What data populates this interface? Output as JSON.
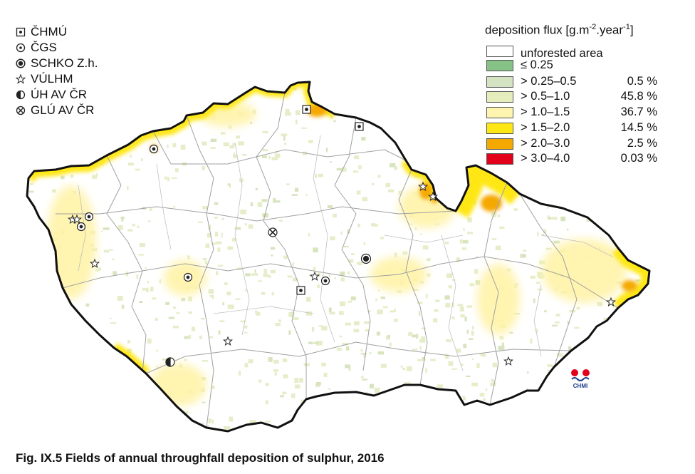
{
  "station_legend": [
    {
      "label": "ČHMÚ",
      "icon": "square-dot-icon"
    },
    {
      "label": "ČGS",
      "icon": "circle-dot-icon"
    },
    {
      "label": "SCHKO Z.h.",
      "icon": "bullseye-icon"
    },
    {
      "label": "VÚLHM",
      "icon": "star-icon"
    },
    {
      "label": "ÚH AV ČR",
      "icon": "half-circle-icon"
    },
    {
      "label": "GLÚ AV ČR",
      "icon": "circle-cross-icon"
    }
  ],
  "flux_legend": {
    "title_main": "deposition flux [g.m",
    "exp1": "-2",
    "title_mid": ".year",
    "exp2": "-1",
    "title_end": "]",
    "classes": [
      {
        "label": "unforested area",
        "percent": "",
        "color": "#ffffff"
      },
      {
        "label": "≤ 0.25",
        "percent": "",
        "color": "#86c285"
      },
      {
        "label": "> 0.25–0.5",
        "percent": "0.5 %",
        "color": "#d4e3c1"
      },
      {
        "label": "> 0.5–1.0",
        "percent": "45.8 %",
        "color": "#e5edbd"
      },
      {
        "label": "> 1.0–1.5",
        "percent": "36.7 %",
        "color": "#fff5b0"
      },
      {
        "label": "> 1.5–2.0",
        "percent": "14.5 %",
        "color": "#ffe716"
      },
      {
        "label": "> 2.0–3.0",
        "percent": "2.5 %",
        "color": "#f5a800"
      },
      {
        "label": "> 3.0–4.0",
        "percent": "0.03 %",
        "color": "#e2001a"
      }
    ]
  },
  "caption": "Fig. IX.5  Fields of annual throughfall deposition of sulphur, 2016",
  "logo": {
    "text": "CHMI",
    "color_red": "#e2001a",
    "color_blue": "#1c3c8c"
  }
}
